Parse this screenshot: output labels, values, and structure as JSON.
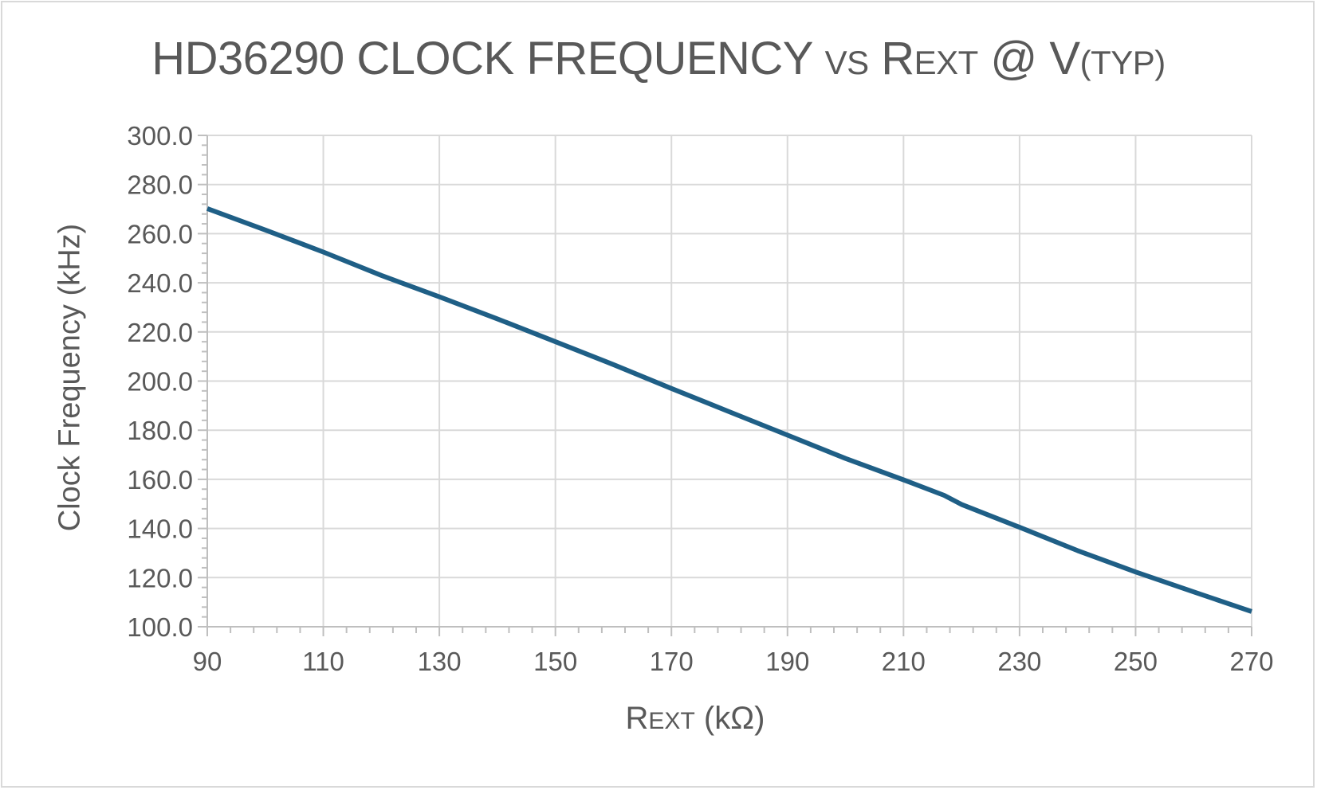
{
  "chart_data": {
    "type": "line",
    "title": {
      "main": "HD36290 CLOCK FREQUENCY",
      "vs": "VS",
      "r": "R",
      "ext": "EXT",
      "at_v": "@ V",
      "typ": "(TYP)"
    },
    "xlabel": {
      "r": "R",
      "ext": "EXT",
      "unit": "(kΩ)"
    },
    "ylabel": "Clock Frequency (kHz)",
    "xlim": [
      90,
      270
    ],
    "ylim": [
      100,
      300
    ],
    "x_ticks": [
      "90",
      "110",
      "130",
      "150",
      "170",
      "190",
      "210",
      "230",
      "250",
      "270"
    ],
    "y_ticks": [
      "100.0",
      "120.0",
      "140.0",
      "160.0",
      "180.0",
      "200.0",
      "220.0",
      "240.0",
      "260.0",
      "280.0",
      "300.0"
    ],
    "grid": true,
    "series": [
      {
        "color": "#1f5f86",
        "x": [
          90,
          100,
          110,
          120,
          130,
          140,
          150,
          160,
          170,
          180,
          190,
          200,
          210,
          217,
          220,
          230,
          240,
          250,
          260,
          270
        ],
        "y": [
          270.2,
          261.5,
          252.5,
          243.0,
          234.3,
          225.3,
          216.0,
          206.7,
          197.0,
          187.5,
          178.0,
          168.5,
          159.8,
          153.5,
          149.8,
          140.5,
          131.0,
          122.3,
          114.2,
          106.2
        ]
      }
    ]
  }
}
